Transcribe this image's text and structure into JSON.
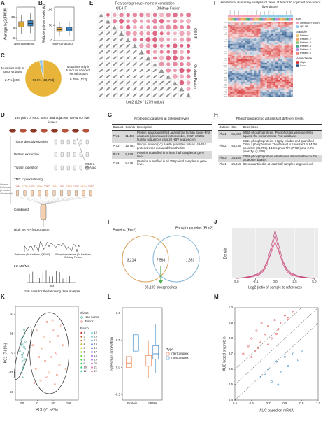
{
  "panel_labels": [
    "A",
    "B",
    "C",
    "D",
    "E",
    "F",
    "G",
    "H",
    "I",
    "J",
    "K",
    "L",
    "M"
  ],
  "chart_data": [
    {
      "type": "box",
      "ylabel": "Average log2(FPKM)",
      "categories": [
        "Non-tumor",
        "Tumor"
      ],
      "colors": [
        "#e0a83a",
        "#3a86c8"
      ],
      "boxes": [
        [
          2,
          5.5,
          6.8,
          8,
          11
        ],
        [
          2.5,
          6,
          7.2,
          8.5,
          12
        ]
      ],
      "ylim": [
        -1,
        15
      ],
      "yticks": [
        0,
        5,
        10
      ]
    },
    {
      "type": "box",
      "ylabel": "RNA-seq clean reads (M)",
      "categories": [
        "Non-tumor",
        "Tumor"
      ],
      "colors": [
        "#e0a83a",
        "#3a86c8"
      ],
      "boxes": [
        [
          15,
          30,
          36,
          42,
          60
        ],
        [
          15,
          31,
          37,
          44,
          62
        ]
      ],
      "ylim": [
        0,
        110
      ],
      "yticks": [
        0,
        50,
        100
      ]
    },
    {
      "type": "pie",
      "categories": [
        null,
        "Mutations only in tumor vs blood",
        "Mutations only in tumor vs adjacent normal tissues"
      ],
      "values": [
        96.5,
        2.7,
        0.79
      ],
      "value_labels": [
        "96.5% [13,734]",
        "2.7% [389]",
        "0.79% [113]"
      ],
      "colors": [
        "#e8b53a",
        "#8fc3e8",
        "#e07b39"
      ]
    },
    {
      "type": "line",
      "xlabel": "Log2 (ratio of sample to reference)",
      "ylabel": "Density",
      "x": [
        -5,
        -4,
        -3,
        -2,
        -1.5,
        -1,
        -0.5,
        0,
        0.5,
        1,
        1.5,
        2,
        3,
        4,
        5
      ],
      "series": [
        {
          "color": "#c2185b",
          "values": [
            0,
            0.01,
            0.03,
            0.08,
            0.15,
            0.3,
            0.6,
            0.95,
            0.6,
            0.3,
            0.15,
            0.08,
            0.03,
            0.01,
            0
          ]
        },
        {
          "color": "#d81b60",
          "values": [
            0,
            0.01,
            0.04,
            0.1,
            0.18,
            0.35,
            0.55,
            0.8,
            0.55,
            0.35,
            0.18,
            0.1,
            0.04,
            0.01,
            0
          ]
        },
        {
          "color": "#ad1457",
          "values": [
            0,
            0.02,
            0.05,
            0.12,
            0.2,
            0.38,
            0.7,
            1.05,
            0.7,
            0.38,
            0.2,
            0.12,
            0.05,
            0.02,
            0
          ]
        }
      ],
      "xlim": [
        -5.5,
        5.5
      ],
      "xticks": [
        {
          "value": -5,
          "label": "-5.0"
        },
        -2.5,
        {
          "value": 0,
          "label": "0.0"
        },
        2.5,
        {
          "value": 5,
          "label": "5.0"
        }
      ],
      "ylim": [
        0,
        1.1
      ],
      "grid": true
    },
    {
      "type": "scatter",
      "xlabel": "PC1 (21.52%)",
      "ylabel": "PC2 (7.61%)",
      "legend_title": "Class",
      "batch_title": "Batch",
      "batches": [
        "1",
        "2",
        "3",
        "4",
        "5",
        "6",
        "7",
        "8",
        "9",
        "10",
        "11",
        "12",
        "13",
        "14",
        "15",
        "16",
        "17",
        "18",
        "19",
        "20",
        "21",
        "22"
      ],
      "series": [
        {
          "name": "Non-tumor",
          "color": "#2a9d8f",
          "x": [
            -52,
            -48,
            -45,
            -42,
            -40,
            -50,
            -46,
            -38,
            -44,
            -55,
            -41,
            -47,
            -43,
            -49,
            -39,
            -53,
            -45,
            -42,
            -48,
            -44
          ],
          "y": [
            10,
            -5,
            20,
            -15,
            5,
            -25,
            0,
            15,
            -10,
            2,
            25,
            -20,
            8,
            -2,
            -8,
            18,
            -30,
            30,
            12,
            -18
          ]
        },
        {
          "name": "Tumor",
          "color": "#e76f51",
          "x": [
            -15,
            -5,
            0,
            10,
            15,
            20,
            25,
            30,
            35,
            40,
            45,
            50,
            55,
            60,
            65,
            70,
            80,
            90,
            5,
            28,
            48,
            62,
            -10,
            75
          ],
          "y": [
            10,
            -20,
            30,
            -35,
            5,
            20,
            -10,
            40,
            -25,
            15,
            -5,
            30,
            -40,
            0,
            22,
            -15,
            10,
            -20,
            -5,
            -30,
            42,
            -28,
            -38,
            35
          ]
        }
      ],
      "xlim": [
        -70,
        130
      ],
      "xticks": [
        -50,
        0,
        50,
        100
      ],
      "ylim": [
        -60,
        60
      ],
      "yticks": [
        -50,
        -25,
        0,
        25,
        50
      ]
    },
    {
      "type": "box",
      "ylabel": "Spearman correlation",
      "categories": [
        "Protein",
        "mRNA"
      ],
      "legend_title": "Type",
      "series": [
        {
          "name": "InterComplex",
          "color": "#e8743b",
          "boxes": [
            [
              -0.3,
              0,
              0.08,
              0.2,
              0.5
            ],
            [
              -0.2,
              0.02,
              0.1,
              0.22,
              0.5
            ]
          ]
        },
        {
          "name": "IntraComplex",
          "color": "#2f7fc1",
          "boxes": [
            [
              0,
              0.3,
              0.45,
              0.6,
              0.95
            ],
            [
              -0.1,
              0.15,
              0.25,
              0.4,
              0.8
            ]
          ]
        }
      ],
      "ylim": [
        -0.6,
        1.1
      ],
      "yticks": [
        -0.5,
        {
          "value": 0,
          "label": "0.0"
        },
        0.5,
        {
          "value": 1,
          "label": "1.0"
        }
      ]
    },
    {
      "type": "scatter",
      "xlabel": "AUC based on mRNA",
      "ylabel": "AUC based on protein",
      "series": [
        {
          "color": "#d62728",
          "x": [
            0.55,
            0.58,
            0.6,
            0.62,
            0.63,
            0.65,
            0.66,
            0.68,
            0.7,
            0.72,
            0.74,
            0.76,
            0.78,
            0.8,
            0.82,
            0.6,
            0.64,
            0.7,
            0.75,
            0.85
          ],
          "y": [
            0.7,
            0.75,
            0.8,
            0.72,
            0.85,
            0.78,
            0.9,
            0.82,
            0.88,
            0.8,
            0.92,
            0.86,
            0.9,
            0.95,
            0.93,
            0.68,
            0.74,
            0.76,
            0.83,
            0.97
          ]
        },
        {
          "color": "#1f77b4",
          "x": [
            0.65,
            0.7,
            0.72,
            0.75,
            0.78,
            0.8,
            0.82,
            0.85,
            0.88,
            0.9,
            0.76,
            0.68
          ],
          "y": [
            0.55,
            0.6,
            0.52,
            0.65,
            0.58,
            0.68,
            0.62,
            0.7,
            0.66,
            0.72,
            0.5,
            0.57
          ]
        }
      ],
      "xlim": [
        0.5,
        1
      ],
      "xticks": [
        0.5,
        0.6,
        0.7,
        0.8,
        0.9,
        {
          "value": 1,
          "label": "1.0"
        }
      ],
      "ylim": [
        0.4,
        1
      ],
      "yticks": [
        0.4,
        0.5,
        0.6,
        0.7,
        0.8,
        0.9,
        {
          "value": 1,
          "label": "1.0"
        }
      ]
    }
  ],
  "heatmap_e": {
    "title": "Pearson's product-moment correlation",
    "top_labels": [
      "QE-HF",
      "Orbitrap Fusion"
    ],
    "side_labels": [
      "QE-HF",
      "Orbitrap Fusion"
    ],
    "xlabel": "Log2 (126 / 127N ratios)"
  },
  "heatmap_f": {
    "title": "Hierarchical clustering analysis of ratios of tumor to adjacent non-tumor liver tissue",
    "legend": [
      {
        "title": "MS",
        "items": [
          "Orbitrap Fusion",
          "QE-HF"
        ],
        "colors": [
          "#f4a6b8",
          "#8ecae6"
        ]
      },
      {
        "title": "Sample",
        "items": [
          "Patient 1",
          "Patient 2",
          "Patient 3",
          "Patient 4",
          "Patient 5",
          "Patient 6"
        ],
        "colors": [
          "#e9c46a",
          "#f4a261",
          "#90be6d",
          "#43aa8b",
          "#b388eb",
          "#f28482"
        ]
      },
      {
        "title": "Abundance",
        "items": [
          "High",
          "Low"
        ],
        "colors": [
          "#d62828",
          "#1d4e89"
        ]
      }
    ]
  },
  "workflow": {
    "title": "159 pairs of HCC tumor and adjacent non-tumor liver tissues",
    "steps": [
      "Tissue dry pulverization",
      "Protein extraction",
      "Trypsin digestion",
      "TMT 11plex labeling",
      "Combined",
      "High pH RP fractionation",
      "LC-MS/MS"
    ],
    "side": "WES & RNAseq",
    "reference": "Internal Reference (a pool of all samples)",
    "tmt_channels": [
      "126",
      "127N",
      "127C",
      "128N",
      "128C",
      "129N",
      "129C",
      "130N",
      "130C",
      "131N",
      "131C"
    ],
    "fractions": [
      "Proteome (40 fractions, QE-HF)",
      "Phosphoproteome (24 fractions, Orbitrap Fusion)"
    ],
    "axis": "m/z",
    "footer": "159 pairs for the following data analysis"
  },
  "table_g": {
    "title": "Proteomic datasets at different levels",
    "columns": [
      "Dataset",
      "Counts",
      "Description"
    ],
    "rows": [
      [
        "Pro1",
        "11,447",
        "Protein groups identified against the human Swiss-Prot database (downloaded in December, 2017, 20,231 human sequences plus 20 HBV sequences)."
      ],
      [
        "Pro2",
        "10,783",
        "Unique protein (≥2) & with quantified values. 4 HBV proteins were excluded from the list."
      ],
      [
        "Pro3",
        "8,638",
        "Proteins quantified in at least half samples at gene level."
      ],
      [
        "Pro4",
        "6,478",
        "Proteins quantified in all 159 paired samples at gene level."
      ]
    ]
  },
  "table_h": {
    "title": "Phosphoproteomic datasets at different levels",
    "columns": [
      "Dataset",
      "Site",
      "Description"
    ],
    "rows": [
      [
        "Pho1",
        "81,803",
        "9,560 phosphoproteins. Phosphosites were identified against the human Swiss-Prot database."
      ],
      [
        "Pho2",
        "55,746",
        "9,224 phosphoproteins. Highly reliable and quantified Class I phosphosites. The dataset is consisted of 84.0% phos-Ser (46,799), 13.9% phos-Thr (7,739) and 2.2% phos-Tyr (1,208)."
      ],
      [
        "Pho3",
        "35,109",
        "7,568 phosphoproteins which were also identified in the proteome dataset."
      ],
      [
        "Pho4",
        "26,418",
        "Sites quantified in at least half samples at gene level."
      ]
    ]
  },
  "venn_i": {
    "left": "Proteins (Pro2)",
    "right": "Phosphoproteins (Pho2)",
    "counts": [
      "3,214",
      "7,568",
      "1,653"
    ],
    "arrow": "35,109 phosphosites"
  }
}
